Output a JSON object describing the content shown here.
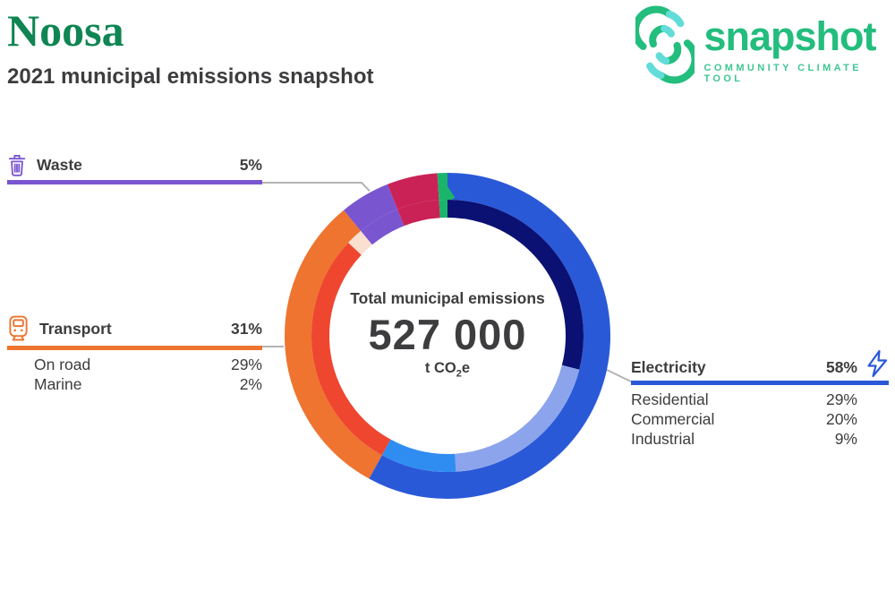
{
  "header": {
    "title": "Noosa",
    "subtitle": "2021 municipal emissions snapshot",
    "title_color": "#0e8552"
  },
  "logo": {
    "name": "snapshot",
    "tagline": "COMMUNITY CLIMATE TOOL",
    "brand_green": "#23bd7e",
    "tagline_green": "#3fc694",
    "accent_cyan": "#62dcd9"
  },
  "colors": {
    "body_text": "#3d3d3f",
    "connector_gray": "#b3b3b3"
  },
  "center": {
    "label": "Total municipal emissions",
    "value": "527 000",
    "unit_prefix": "t CO",
    "unit_sub": "2",
    "unit_suffix": "e"
  },
  "categories": {
    "waste": {
      "label": "Waste",
      "pct": "5%",
      "color": "#7a55d0",
      "icon": "trash-icon"
    },
    "transport": {
      "label": "Transport",
      "pct": "31%",
      "color": "#ef7430",
      "icon": "tram-icon",
      "subs": [
        {
          "label": "On road",
          "pct": "29%"
        },
        {
          "label": "Marine",
          "pct": "2%"
        }
      ]
    },
    "electricity": {
      "label": "Electricity",
      "pct": "58%",
      "color": "#2a59d8",
      "icon": "lightning-bolt-icon",
      "subs": [
        {
          "label": "Residential",
          "pct": "29%"
        },
        {
          "label": "Commercial",
          "pct": "20%"
        },
        {
          "label": "Industrial",
          "pct": "9%"
        }
      ]
    }
  },
  "chart_data": {
    "type": "pie",
    "variant": "double-ring donut",
    "title": "Total municipal emissions",
    "center_value": "527 000",
    "center_unit": "t CO2e",
    "start_angle_deg": 0,
    "direction": "clockwise",
    "outer_ring_percent": [
      {
        "label": "Electricity",
        "value": 58,
        "color": "#2a59d8"
      },
      {
        "label": "Transport",
        "value": 31,
        "color": "#ef7430"
      },
      {
        "label": "Waste",
        "value": 5,
        "color": "#7a55d0"
      },
      {
        "label": "unlabeled-crimson-segment",
        "value": 5,
        "color": "#ca2256"
      },
      {
        "label": "unlabeled-green-segment",
        "value": 1,
        "color": "#19b56b"
      }
    ],
    "inner_ring_percent": [
      {
        "label": "Residential",
        "value": 29,
        "color": "#0a1172"
      },
      {
        "label": "Commercial",
        "value": 20,
        "color": "#8ca4ec"
      },
      {
        "label": "Industrial",
        "value": 9,
        "color": "#2f8df2"
      },
      {
        "label": "On road",
        "value": 29,
        "color": "#ef4630"
      },
      {
        "label": "Marine",
        "value": 2,
        "color": "#fbe0cf"
      },
      {
        "label": "Waste",
        "value": 5,
        "color": "#7a55d0"
      },
      {
        "label": "unlabeled-crimson-segment",
        "value": 5,
        "color": "#ca2256"
      },
      {
        "label": "unlabeled-green-segment",
        "value": 1,
        "color": "#19b56b"
      }
    ]
  }
}
